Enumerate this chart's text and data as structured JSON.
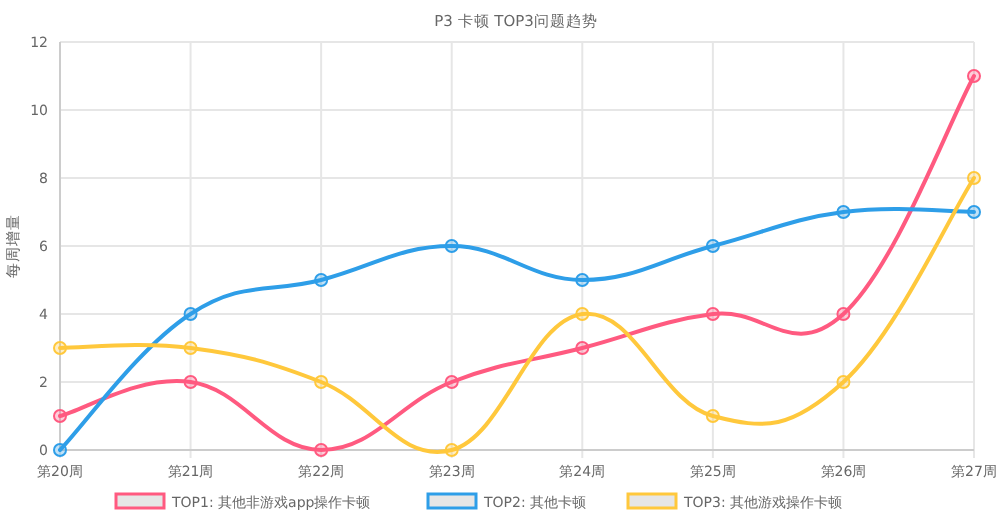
{
  "chart_data": {
    "type": "line",
    "title": "P3 卡顿 TOP3问题趋势",
    "ylabel": "每周增量",
    "categories": [
      "第20周",
      "第21周",
      "第22周",
      "第23周",
      "第24周",
      "第25周",
      "第26周",
      "第27周"
    ],
    "series": [
      {
        "name": "TOP1: 其他非游戏app操作卡顿",
        "color": "#ff5a80",
        "values": [
          1,
          2,
          0,
          2,
          3,
          4,
          4,
          11
        ]
      },
      {
        "name": "TOP2: 其他卡顿",
        "color": "#2e9ee8",
        "values": [
          0,
          4,
          5,
          6,
          5,
          6,
          7,
          7
        ]
      },
      {
        "name": "TOP3: 其他游戏操作卡顿",
        "color": "#ffc83c",
        "values": [
          3,
          3,
          2,
          0,
          4,
          1,
          2,
          8
        ]
      }
    ],
    "ylim": [
      0,
      12
    ],
    "yticks": [
      0,
      2,
      4,
      6,
      8,
      10,
      12
    ],
    "grid": true,
    "legend": "bottom",
    "marker": "circle",
    "line_style": "solid"
  }
}
